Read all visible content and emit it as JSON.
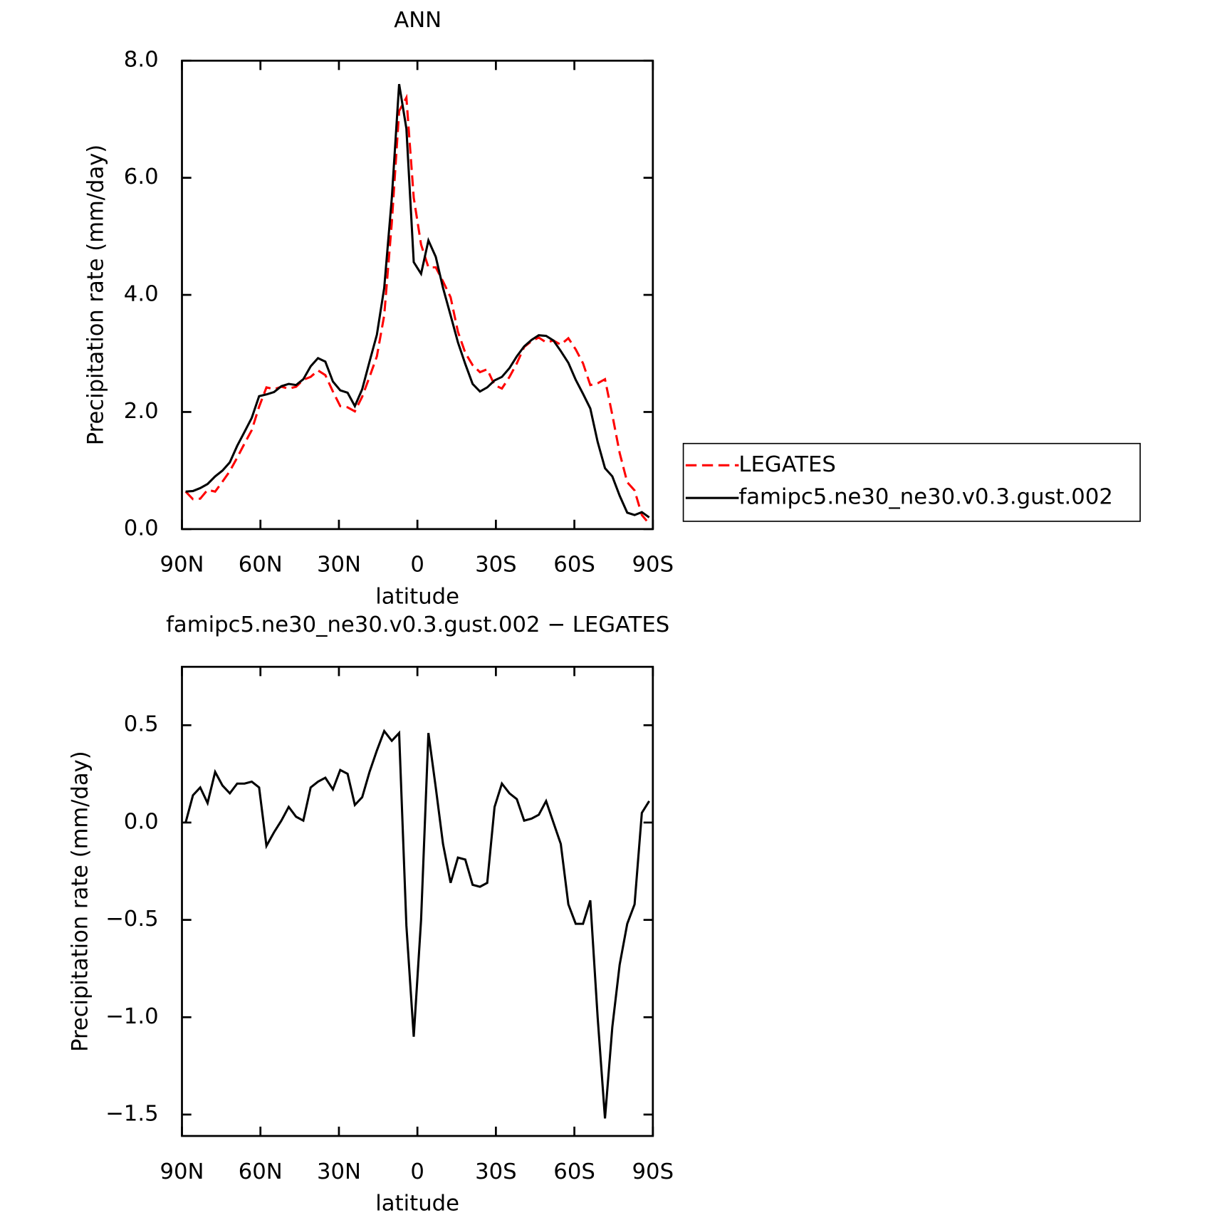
{
  "chart_data": [
    {
      "type": "line",
      "title": "ANN",
      "xlabel": "latitude",
      "ylabel": "Precipitation rate (mm/day)",
      "xlim": [
        90,
        -90
      ],
      "xticks": [
        {
          "value": 90,
          "label": "90N"
        },
        {
          "value": 60,
          "label": "60N"
        },
        {
          "value": 30,
          "label": "30N"
        },
        0,
        {
          "value": -30,
          "label": "30S"
        },
        {
          "value": -60,
          "label": "60S"
        },
        {
          "value": -90,
          "label": "90S"
        }
      ],
      "ylim": [
        0,
        8
      ],
      "yticks": [
        {
          "value": 0,
          "label": "0.0"
        },
        {
          "value": 2,
          "label": "2.0"
        },
        {
          "value": 4,
          "label": "4.0"
        },
        {
          "value": 6,
          "label": "6.0"
        },
        {
          "value": 8,
          "label": "8.0"
        }
      ],
      "x": [
        88.6,
        85.8,
        83.0,
        80.2,
        77.3,
        74.5,
        71.7,
        68.9,
        66.1,
        63.3,
        60.5,
        57.7,
        54.8,
        52.0,
        49.2,
        46.4,
        43.6,
        40.8,
        38.0,
        35.2,
        32.3,
        29.5,
        26.7,
        23.9,
        21.1,
        18.3,
        15.5,
        12.7,
        9.8,
        7.0,
        4.2,
        1.4,
        -1.4,
        -4.2,
        -7.0,
        -9.8,
        -12.7,
        -15.5,
        -18.3,
        -21.1,
        -23.9,
        -26.7,
        -29.5,
        -32.3,
        -35.2,
        -38.0,
        -40.8,
        -43.6,
        -46.4,
        -49.2,
        -52.0,
        -54.8,
        -57.7,
        -60.5,
        -63.3,
        -66.1,
        -68.9,
        -71.7,
        -74.5,
        -77.3,
        -80.2,
        -83.0,
        -85.8,
        -88.6
      ],
      "series": [
        {
          "name": "LEGATES",
          "color": "#ff0000",
          "style": "dashed",
          "values": [
            0.64,
            0.51,
            0.52,
            0.67,
            0.64,
            0.81,
            0.99,
            1.22,
            1.46,
            1.69,
            2.09,
            2.42,
            2.39,
            2.43,
            2.4,
            2.43,
            2.55,
            2.6,
            2.71,
            2.63,
            2.35,
            2.1,
            2.08,
            2.01,
            2.26,
            2.6,
            2.95,
            3.65,
            5.23,
            7.14,
            7.37,
            5.66,
            4.86,
            4.47,
            4.47,
            4.23,
            3.96,
            3.37,
            3.01,
            2.8,
            2.68,
            2.73,
            2.46,
            2.4,
            2.6,
            2.83,
            3.11,
            3.21,
            3.27,
            3.19,
            3.22,
            3.15,
            3.26,
            3.07,
            2.83,
            2.46,
            2.49,
            2.56,
            1.95,
            1.3,
            0.8,
            0.66,
            0.24,
            0.09
          ]
        },
        {
          "name": "famipc5.ne30_ne30.v0.3.gust.002",
          "color": "#000000",
          "style": "solid",
          "values": [
            0.64,
            0.65,
            0.7,
            0.77,
            0.9,
            1.0,
            1.14,
            1.42,
            1.66,
            1.9,
            2.27,
            2.3,
            2.34,
            2.44,
            2.48,
            2.46,
            2.56,
            2.78,
            2.92,
            2.86,
            2.52,
            2.37,
            2.33,
            2.1,
            2.39,
            2.86,
            3.32,
            4.12,
            5.65,
            7.6,
            6.84,
            4.56,
            4.36,
            4.93,
            4.65,
            4.12,
            3.65,
            3.19,
            2.82,
            2.48,
            2.35,
            2.42,
            2.54,
            2.6,
            2.75,
            2.95,
            3.12,
            3.23,
            3.31,
            3.3,
            3.22,
            3.04,
            2.84,
            2.55,
            2.31,
            2.06,
            1.49,
            1.04,
            0.9,
            0.57,
            0.28,
            0.24,
            0.29,
            0.2
          ]
        }
      ]
    },
    {
      "type": "line",
      "title": "famipc5.ne30_ne30.v0.3.gust.002 − LEGATES",
      "xlabel": "latitude",
      "ylabel": "Precipitation rate (mm/day)",
      "xlim": [
        90,
        -90
      ],
      "xticks": [
        {
          "value": 90,
          "label": "90N"
        },
        {
          "value": 60,
          "label": "60N"
        },
        {
          "value": 30,
          "label": "30N"
        },
        0,
        {
          "value": -30,
          "label": "30S"
        },
        {
          "value": -60,
          "label": "60S"
        },
        {
          "value": -90,
          "label": "90S"
        }
      ],
      "ylim": [
        -1.61,
        0.8
      ],
      "yticks": [
        {
          "value": -1.5,
          "label": "−1.5"
        },
        {
          "value": -1.0,
          "label": "−1.0"
        },
        {
          "value": -0.5,
          "label": "−0.5"
        },
        {
          "value": 0,
          "label": "0.0"
        },
        0.5
      ],
      "x": [
        88.6,
        85.8,
        83.0,
        80.2,
        77.3,
        74.5,
        71.7,
        68.9,
        66.1,
        63.3,
        60.5,
        57.7,
        54.8,
        52.0,
        49.2,
        46.4,
        43.6,
        40.8,
        38.0,
        35.2,
        32.3,
        29.5,
        26.7,
        23.9,
        21.1,
        18.3,
        15.5,
        12.7,
        9.8,
        7.0,
        4.2,
        1.4,
        -1.4,
        -4.2,
        -7.0,
        -9.8,
        -12.7,
        -15.5,
        -18.3,
        -21.1,
        -23.9,
        -26.7,
        -29.5,
        -32.3,
        -35.2,
        -38.0,
        -40.8,
        -43.6,
        -46.4,
        -49.2,
        -52.0,
        -54.8,
        -57.7,
        -60.5,
        -63.3,
        -66.1,
        -68.9,
        -71.7,
        -74.5,
        -77.3,
        -80.2,
        -83.0,
        -85.8,
        -88.6
      ],
      "series": [
        {
          "color": "#000000",
          "style": "solid",
          "values": [
            0.0,
            0.14,
            0.18,
            0.1,
            0.26,
            0.19,
            0.15,
            0.2,
            0.2,
            0.21,
            0.18,
            -0.12,
            -0.05,
            0.01,
            0.08,
            0.03,
            0.01,
            0.18,
            0.21,
            0.23,
            0.17,
            0.27,
            0.25,
            0.09,
            0.13,
            0.26,
            0.37,
            0.47,
            0.42,
            0.46,
            -0.53,
            -1.1,
            -0.5,
            0.46,
            0.18,
            -0.11,
            -0.31,
            -0.18,
            -0.19,
            -0.32,
            -0.33,
            -0.31,
            0.08,
            0.2,
            0.15,
            0.12,
            0.01,
            0.02,
            0.04,
            0.11,
            0.0,
            -0.11,
            -0.42,
            -0.52,
            -0.52,
            -0.4,
            -1.0,
            -1.52,
            -1.05,
            -0.73,
            -0.52,
            -0.42,
            0.05,
            0.11
          ]
        }
      ]
    }
  ]
}
